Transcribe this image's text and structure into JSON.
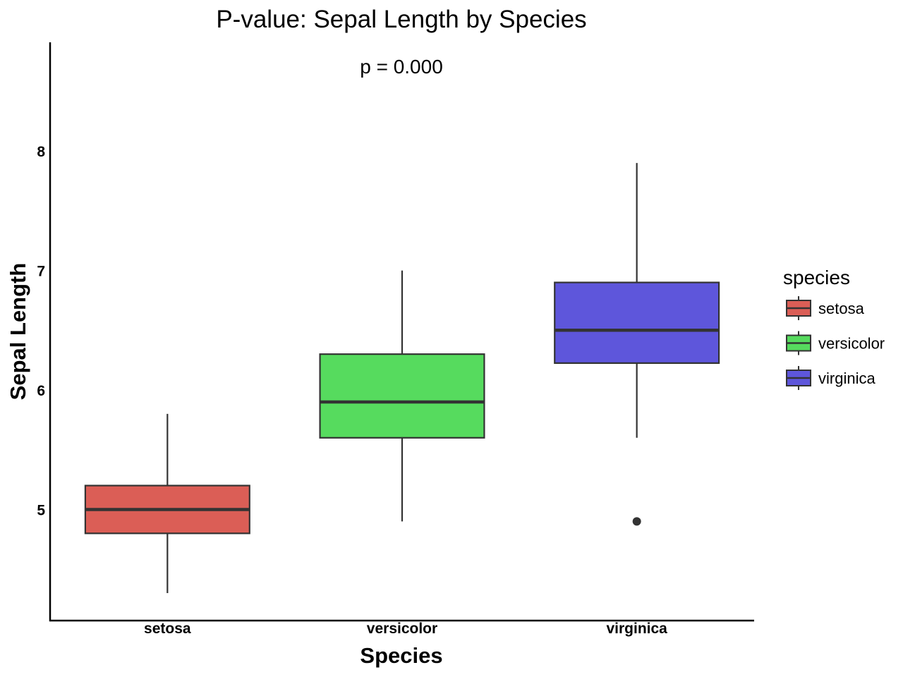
{
  "chart_data": {
    "type": "box",
    "title": "P-value: Sepal Length by Species",
    "annotation": "p = 0.000",
    "xlabel": "Species",
    "ylabel": "Sepal Length",
    "ylim": [
      4.07,
      8.91
    ],
    "yticks": [
      5,
      6,
      7,
      8
    ],
    "grid": false,
    "categories": [
      "setosa",
      "versicolor",
      "virginica"
    ],
    "series": [
      {
        "name": "setosa",
        "color": "#DB5E56",
        "whisker_low": 4.3,
        "q1": 4.8,
        "median": 5.0,
        "q3": 5.2,
        "whisker_high": 5.8,
        "outliers": []
      },
      {
        "name": "versicolor",
        "color": "#56DB5E",
        "whisker_low": 4.9,
        "q1": 5.6,
        "median": 5.9,
        "q3": 6.3,
        "whisker_high": 7.0,
        "outliers": []
      },
      {
        "name": "virginica",
        "color": "#5E56DB",
        "whisker_low": 5.6,
        "q1": 6.225,
        "median": 6.5,
        "q3": 6.9,
        "whisker_high": 7.9,
        "outliers": [
          4.9
        ]
      }
    ],
    "legend": {
      "title": "species",
      "position": "right",
      "entries": [
        "setosa",
        "versicolor",
        "virginica"
      ]
    }
  }
}
